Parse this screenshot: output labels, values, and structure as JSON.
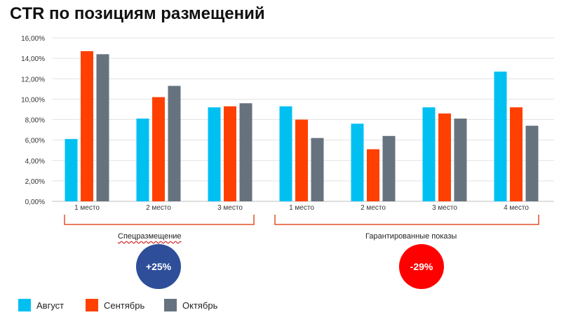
{
  "title": "CTR по позициям размещений",
  "chart_data": {
    "type": "bar",
    "title": "CTR по позициям размещений",
    "xlabel": "",
    "ylabel": "",
    "ylim": [
      0,
      16
    ],
    "ytick_step": 2,
    "ytick_labels": [
      "0,00%",
      "2,00%",
      "4,00%",
      "6,00%",
      "8,00%",
      "10,00%",
      "12,00%",
      "14,00%",
      "16,00%"
    ],
    "categories": [
      "1 место",
      "2 место",
      "3 место",
      "1 место",
      "2 место",
      "3 место",
      "4 место"
    ],
    "series": [
      {
        "name": "Август",
        "color": "#00c0f2",
        "values": [
          6.1,
          8.1,
          9.2,
          9.3,
          7.6,
          9.2,
          12.7
        ]
      },
      {
        "name": "Сентябрь",
        "color": "#ff4000",
        "values": [
          14.7,
          10.2,
          9.3,
          8.0,
          5.1,
          8.6,
          9.2
        ]
      },
      {
        "name": "Октябрь",
        "color": "#66737f",
        "values": [
          14.4,
          11.3,
          9.6,
          6.2,
          6.4,
          8.1,
          7.4
        ]
      }
    ],
    "groups": [
      {
        "label": "Спецразмещение",
        "badge": "+25%",
        "badge_color": "#2e4e9a"
      },
      {
        "label": "Гарантированные показы",
        "badge": "-29%",
        "badge_color": "#ff0000"
      }
    ],
    "legend": "bottom-left",
    "grid": true
  }
}
